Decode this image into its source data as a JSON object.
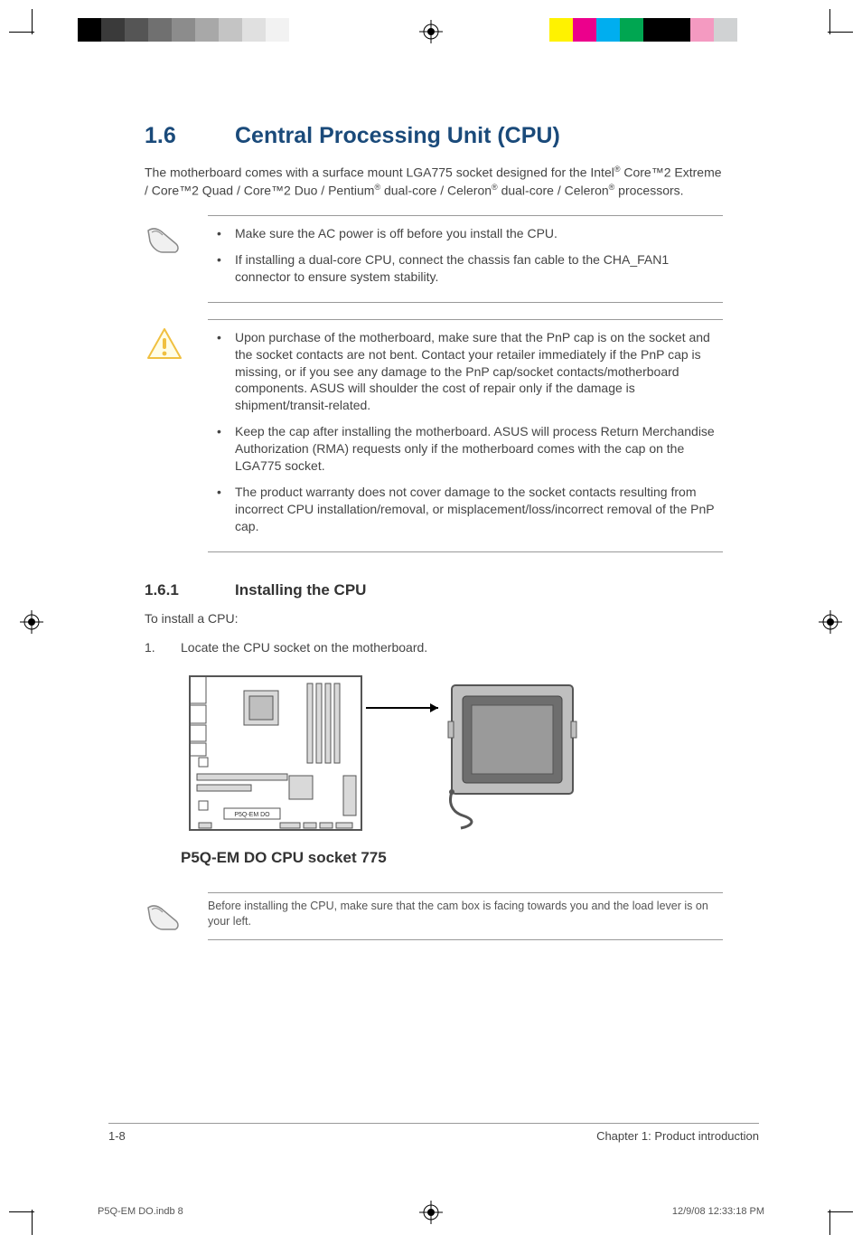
{
  "colorbars": {
    "left": [
      "#000000",
      "#3a3a3a",
      "#555555",
      "#707070",
      "#8c8c8c",
      "#a8a8a8",
      "#c4c4c4",
      "#e0e0e0",
      "#f2f2f2",
      "#ffffff",
      "#ffffff"
    ],
    "right": [
      "#fff200",
      "#ec008c",
      "#00aeef",
      "#00a651",
      "#000000",
      "#000000",
      "#f49ac1",
      "#d0d2d3",
      "#ffffff",
      "#ffffff"
    ]
  },
  "section": {
    "number": "1.6",
    "title": "Central Processing Unit (CPU)"
  },
  "intro": "The motherboard comes with a surface mount LGA775 socket designed for the Intel® Core™2 Extreme / Core™2 Quad / Core™2 Duo / Pentium® dual-core / Celeron® dual-core / Celeron®  processors.",
  "note1": {
    "items": [
      "Make sure the AC power is off before you install the CPU.",
      "If installing a dual-core CPU, connect the chassis fan cable to the CHA_FAN1 connector to ensure system stability."
    ]
  },
  "note2": {
    "items": [
      "Upon purchase of the motherboard, make sure that the PnP cap is on the socket and the socket contacts are not bent. Contact your retailer immediately if the PnP cap is missing, or if you see any damage to the PnP cap/socket contacts/motherboard components. ASUS will shoulder the cost of repair only if the damage is shipment/transit-related.",
      "Keep the cap after installing the motherboard. ASUS will process Return Merchandise Authorization (RMA) requests only if the motherboard comes with the cap on the LGA775 socket.",
      "The product warranty does not cover damage to the socket contacts resulting from incorrect CPU installation/removal, or misplacement/loss/incorrect removal of the PnP cap."
    ]
  },
  "subsection": {
    "number": "1.6.1",
    "title": "Installing the CPU"
  },
  "lead": "To install a CPU:",
  "steps": [
    {
      "n": "1.",
      "text": "Locate the CPU socket on the motherboard."
    }
  ],
  "diagram": {
    "board_label": "P5Q-EM DO",
    "caption": "P5Q-EM DO CPU socket 775",
    "colors": {
      "board_stroke": "#555555",
      "board_fill": "#ffffff",
      "socket_fill": "#bfbfbf",
      "socket_dark": "#6e6e6e",
      "slot_fill": "#d9d9d9",
      "arrow": "#000000"
    }
  },
  "note3": "Before installing the CPU, make sure that the cam box is facing towards you and the load lever is on your left.",
  "footer": {
    "page": "1-8",
    "chapter": "Chapter 1: Product introduction"
  },
  "slug": {
    "file": "P5Q-EM DO.indb   8",
    "datetime": "12/9/08   12:33:18 PM"
  }
}
